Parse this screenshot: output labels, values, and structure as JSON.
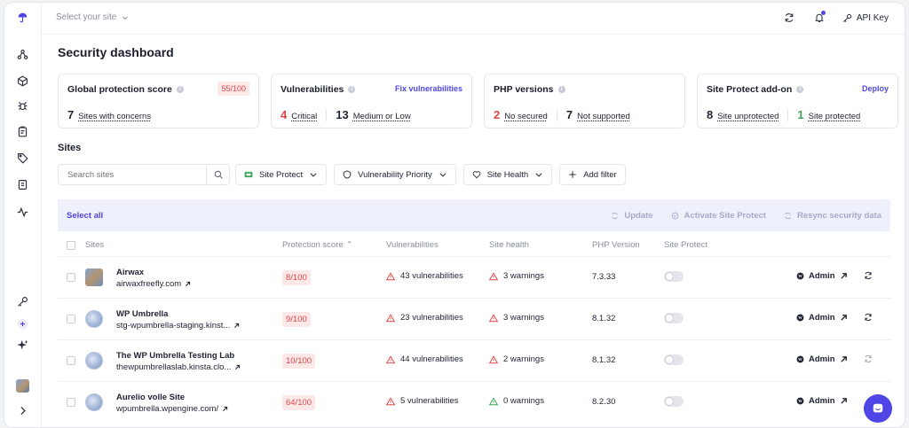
{
  "topbar": {
    "site_select": "Select your site",
    "api_key": "API Key"
  },
  "page_title": "Security dashboard",
  "cards": {
    "global": {
      "title": "Global protection score",
      "badge": "55/100",
      "count": "7",
      "label": "Sites with concerns"
    },
    "vulnerabilities": {
      "title": "Vulnerabilities",
      "action": "Fix vulnerabilities",
      "critical_count": "4",
      "critical_label": "Critical",
      "medium_count": "13",
      "medium_label": "Medium or Low"
    },
    "php": {
      "title": "PHP versions",
      "nosec_count": "2",
      "nosec_label": "No secured",
      "nosupp_count": "7",
      "nosupp_label": "Not supported"
    },
    "protect": {
      "title": "Site Protect add-on",
      "action": "Deploy",
      "unprot_count": "8",
      "unprot_label": "Site unprotected",
      "prot_count": "1",
      "prot_label": "Site protected"
    }
  },
  "sites": {
    "heading": "Sites",
    "search_placeholder": "Search sites",
    "filters": [
      "Site Protect",
      "Vulnerability Priority",
      "Site Health",
      "Add filter"
    ],
    "select_all": "Select all",
    "bulk_actions": [
      "Update",
      "Activate Site Protect",
      "Resync security data"
    ],
    "columns": {
      "sites": "Sites",
      "protection": "Protection score",
      "vulnerabilities": "Vulnerabilities",
      "health": "Site health",
      "php": "PHP Version",
      "protect": "Site Protect"
    },
    "rows": [
      {
        "name": "Airwax",
        "url": "airwaxfreefly.com",
        "score": "8/100",
        "vulns": "43 vulnerabilities",
        "health": "3 warnings",
        "php": "7.3.33",
        "admin": "Admin"
      },
      {
        "name": "WP Umbrella",
        "url": "stg-wpumbrella-staging.kinst...",
        "score": "9/100",
        "vulns": "23 vulnerabilities",
        "health": "3 warnings",
        "php": "8.1.32",
        "admin": "Admin"
      },
      {
        "name": "The WP Umbrella Testing Lab",
        "url": "thewpumbrellaslab.kinsta.clo...",
        "score": "10/100",
        "vulns": "44 vulnerabilities",
        "health": "2 warnings",
        "php": "8.1.32",
        "admin": "Admin"
      },
      {
        "name": "Aurelio volle Site",
        "url": "wpumbrella.wpengine.com/",
        "score": "64/100",
        "vulns": "5 vulnerabilities",
        "health": "0 warnings",
        "php": "8.2.30",
        "admin": "Admin"
      }
    ]
  },
  "colors": {
    "accent": "#4f46e5",
    "danger": "#e0454a",
    "success": "#3aa55a"
  }
}
